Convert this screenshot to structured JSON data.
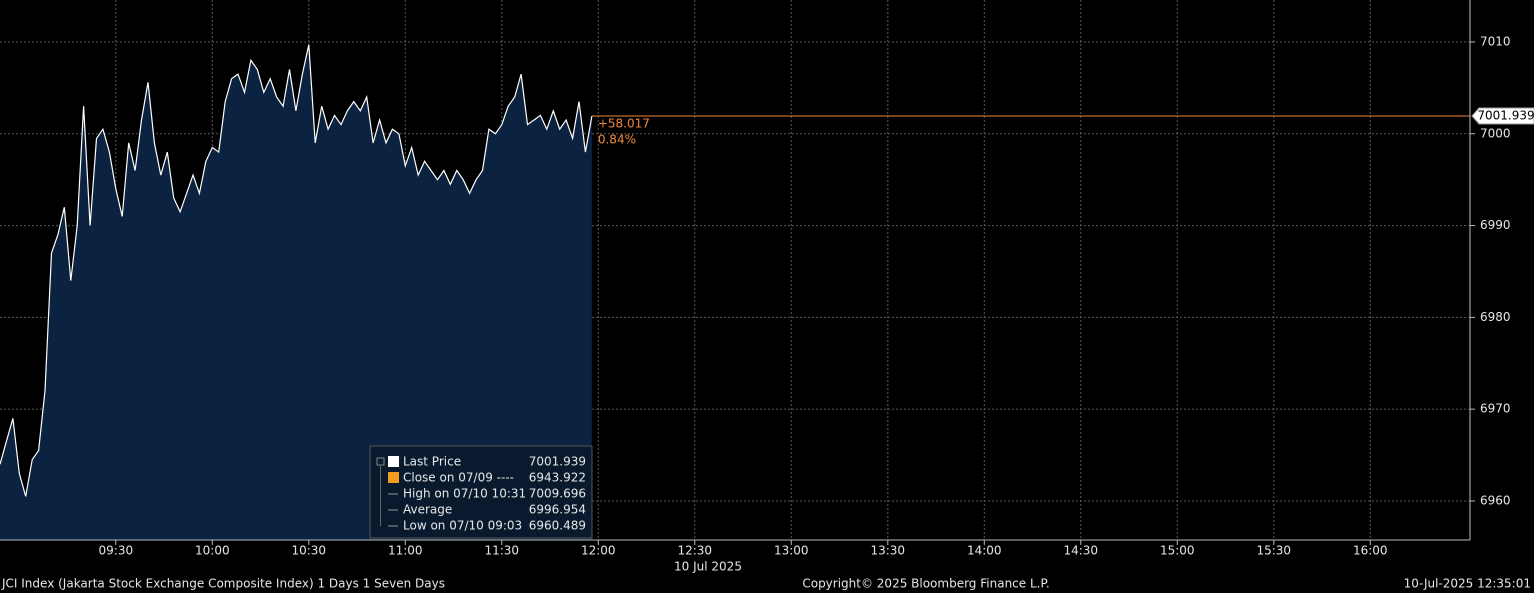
{
  "chart_data": {
    "type": "area",
    "x": [
      "08:54",
      "08:56",
      "08:58",
      "09:00",
      "09:02",
      "09:04",
      "09:06",
      "09:08",
      "09:10",
      "09:12",
      "09:14",
      "09:16",
      "09:18",
      "09:20",
      "09:22",
      "09:24",
      "09:26",
      "09:28",
      "09:30",
      "09:32",
      "09:34",
      "09:36",
      "09:38",
      "09:40",
      "09:42",
      "09:44",
      "09:46",
      "09:48",
      "09:50",
      "09:52",
      "09:54",
      "09:56",
      "09:58",
      "10:00",
      "10:02",
      "10:04",
      "10:06",
      "10:08",
      "10:10",
      "10:12",
      "10:14",
      "10:16",
      "10:18",
      "10:20",
      "10:22",
      "10:24",
      "10:26",
      "10:28",
      "10:30",
      "10:32",
      "10:34",
      "10:36",
      "10:38",
      "10:40",
      "10:42",
      "10:44",
      "10:46",
      "10:48",
      "10:50",
      "10:52",
      "10:54",
      "10:56",
      "10:58",
      "11:00",
      "11:02",
      "11:04",
      "11:06",
      "11:08",
      "11:10",
      "11:12",
      "11:14",
      "11:16",
      "11:18",
      "11:20",
      "11:22",
      "11:24",
      "11:26",
      "11:28",
      "11:30",
      "11:32",
      "11:34",
      "11:36",
      "11:38",
      "11:40",
      "11:42",
      "11:44",
      "11:46",
      "11:48",
      "11:50",
      "11:52",
      "11:54",
      "11:56",
      "11:58"
    ],
    "series": [
      {
        "name": "Last Price",
        "color": "#ffffff",
        "fill": "#0b2240",
        "values": [
          6964.0,
          6966.5,
          6969.0,
          6963.0,
          6960.5,
          6964.5,
          6965.5,
          6972.0,
          6987.0,
          6989.0,
          6992.0,
          6984.0,
          6990.0,
          7003.0,
          6990.0,
          6999.5,
          7000.5,
          6998.0,
          6994.0,
          6991.0,
          6999.0,
          6996.0,
          7001.5,
          7005.6,
          6999.0,
          6995.5,
          6998.0,
          6993.0,
          6991.5,
          6993.5,
          6995.5,
          6993.5,
          6997.0,
          6998.5,
          6998.0,
          7003.5,
          7006.0,
          7006.5,
          7004.5,
          7008.0,
          7007.0,
          7004.5,
          7006.0,
          7004.0,
          7003.0,
          7007.0,
          7002.5,
          7006.5,
          7009.7,
          6999.0,
          7003.0,
          7000.5,
          7002.0,
          7001.0,
          7002.5,
          7003.5,
          7002.5,
          7004.0,
          6999.0,
          7001.5,
          6999.0,
          7000.5,
          7000.0,
          6996.5,
          6998.5,
          6995.5,
          6997.0,
          6996.0,
          6995.0,
          6996.0,
          6994.5,
          6996.0,
          6995.0,
          6993.5,
          6995.0,
          6996.0,
          7000.5,
          7000.0,
          7001.0,
          7003.0,
          7004.0,
          7006.5,
          7001.0,
          7001.5,
          7002.0,
          7000.5,
          7002.5,
          7000.5,
          7001.5,
          6999.5,
          7003.5,
          6998.0,
          7001.939
        ]
      }
    ],
    "xlim": [
      "08:54",
      "16:31"
    ],
    "xticks": [
      "09:30",
      "10:00",
      "10:30",
      "11:00",
      "11:30",
      "12:00",
      "12:30",
      "13:00",
      "13:30",
      "14:00",
      "14:30",
      "15:00",
      "15:30",
      "16:00"
    ],
    "ylim": [
      6955.75,
      7014.57
    ],
    "yticks": [
      6960,
      6970,
      6980,
      6990,
      7000,
      7010
    ],
    "grid": true,
    "date_label": "10 Jul 2025",
    "last_price": 7001.939,
    "last_color": "#f0883a",
    "change": "+58.017",
    "change_pct": "0.84%",
    "legend": [
      {
        "label": "Last Price",
        "value": 7001.939,
        "color": "#ffffff"
      },
      {
        "label": "Close on 07/09 ----",
        "value": 6943.922,
        "color": "#f39c1f"
      },
      {
        "label": "High on 07/10 10:31",
        "value": 7009.696
      },
      {
        "label": "Average",
        "value": 6996.954
      },
      {
        "label": "Low on 07/10 09:03",
        "value": 6960.489
      }
    ],
    "footer": {
      "left": "JCI Index (Jakarta Stock Exchange Composite Index) 1 Days 1 Seven Days",
      "center": "Copyright© 2025 Bloomberg Finance L.P.",
      "right": "10-Jul-2025 12:35:01"
    }
  }
}
